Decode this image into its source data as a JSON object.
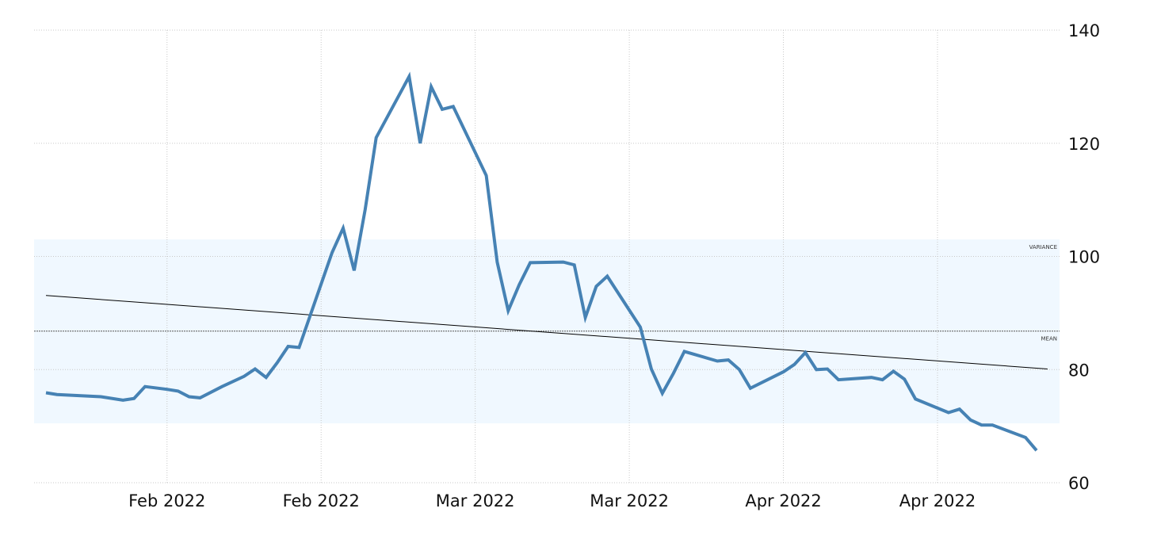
{
  "chart_data": {
    "type": "line",
    "title": "",
    "xlabel": "",
    "ylabel": "",
    "ylim": [
      60,
      140
    ],
    "y_ticks": [
      60,
      80,
      100,
      120,
      140
    ],
    "y_axis_side": "right",
    "x_tick_labels": [
      "Feb 2022",
      "Feb 2022",
      "Mar 2022",
      "Mar 2022",
      "Apr 2022",
      "Apr 2022"
    ],
    "x_tick_positions": [
      11,
      25,
      39,
      53,
      67,
      81
    ],
    "grid": true,
    "line_color": "#4682b4",
    "band_color": "#f0f8ff",
    "series": [
      {
        "values": [
          [
            0,
            75.9
          ],
          [
            1,
            75.6
          ],
          [
            5,
            75.2
          ],
          [
            7,
            74.6
          ],
          [
            8,
            74.9
          ],
          [
            9,
            77.0
          ],
          [
            11,
            76.5
          ],
          [
            12,
            76.2
          ],
          [
            13,
            75.2
          ],
          [
            14,
            75.0
          ],
          [
            16,
            77.0
          ],
          [
            18,
            78.8
          ],
          [
            19,
            80.1
          ],
          [
            20,
            78.6
          ],
          [
            21,
            81.2
          ],
          [
            22,
            84.1
          ],
          [
            23,
            83.9
          ],
          [
            26,
            100.7
          ],
          [
            27,
            105.0
          ],
          [
            28,
            97.5
          ],
          [
            29,
            108.3
          ],
          [
            30,
            121.0
          ],
          [
            33,
            131.8
          ],
          [
            34,
            120.0
          ],
          [
            35,
            130.0
          ],
          [
            36,
            126.0
          ],
          [
            37,
            126.5
          ],
          [
            40,
            114.3
          ],
          [
            41,
            99.0
          ],
          [
            42,
            90.4
          ],
          [
            43,
            95.0
          ],
          [
            44,
            98.9
          ],
          [
            47,
            99.0
          ],
          [
            48,
            98.5
          ],
          [
            49,
            89.2
          ],
          [
            50,
            94.7
          ],
          [
            51,
            96.5
          ],
          [
            54,
            87.5
          ],
          [
            55,
            80.1
          ],
          [
            56,
            75.8
          ],
          [
            57,
            79.3
          ],
          [
            58,
            83.2
          ],
          [
            61,
            81.5
          ],
          [
            62,
            81.7
          ],
          [
            63,
            80.0
          ],
          [
            64,
            76.7
          ],
          [
            67,
            79.6
          ],
          [
            68,
            80.9
          ],
          [
            69,
            83.0
          ],
          [
            70,
            80.0
          ],
          [
            71,
            80.1
          ],
          [
            72,
            78.2
          ],
          [
            75,
            78.6
          ],
          [
            76,
            78.2
          ],
          [
            77,
            79.7
          ],
          [
            78,
            78.3
          ],
          [
            79,
            74.8
          ],
          [
            82,
            72.4
          ],
          [
            83,
            73.0
          ],
          [
            84,
            71.1
          ],
          [
            85,
            70.2
          ],
          [
            86,
            70.2
          ],
          [
            89,
            68.0
          ],
          [
            90,
            65.7
          ]
        ]
      }
    ],
    "trend_line": {
      "start": [
        0,
        93.1
      ],
      "end": [
        91,
        80.1
      ],
      "color": "#000000"
    },
    "mean": {
      "label": "MEAN",
      "value": 86.8
    },
    "variance_band": {
      "label": "VARIANCE",
      "from": 70.5,
      "to": 103.0
    }
  }
}
